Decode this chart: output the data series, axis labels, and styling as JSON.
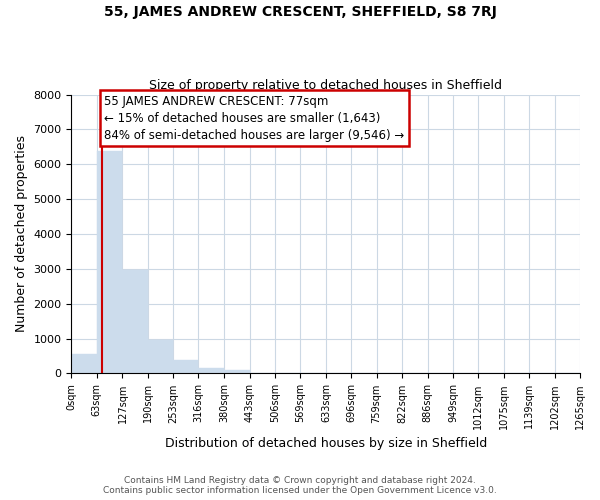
{
  "title": "55, JAMES ANDREW CRESCENT, SHEFFIELD, S8 7RJ",
  "subtitle": "Size of property relative to detached houses in Sheffield",
  "xlabel": "Distribution of detached houses by size in Sheffield",
  "ylabel": "Number of detached properties",
  "bar_edges": [
    0,
    63,
    127,
    190,
    253,
    316,
    380,
    443,
    506,
    569,
    633,
    696,
    759,
    822,
    886,
    949,
    1012,
    1075,
    1139,
    1202,
    1265
  ],
  "bar_heights": [
    560,
    6380,
    2960,
    960,
    390,
    170,
    90,
    0,
    0,
    0,
    0,
    0,
    0,
    0,
    0,
    0,
    0,
    0,
    0,
    0
  ],
  "bar_color": "#ccdcec",
  "property_line_x": 77,
  "property_line_color": "#cc0000",
  "annotation_text": "55 JAMES ANDREW CRESCENT: 77sqm\n← 15% of detached houses are smaller (1,643)\n84% of semi-detached houses are larger (9,546) →",
  "annotation_box_facecolor": "#ffffff",
  "annotation_box_edgecolor": "#cc0000",
  "ylim": [
    0,
    8000
  ],
  "xlim": [
    0,
    1265
  ],
  "tick_labels": [
    "0sqm",
    "63sqm",
    "127sqm",
    "190sqm",
    "253sqm",
    "316sqm",
    "380sqm",
    "443sqm",
    "506sqm",
    "569sqm",
    "633sqm",
    "696sqm",
    "759sqm",
    "822sqm",
    "886sqm",
    "949sqm",
    "1012sqm",
    "1075sqm",
    "1139sqm",
    "1202sqm",
    "1265sqm"
  ],
  "tick_positions": [
    0,
    63,
    127,
    190,
    253,
    316,
    380,
    443,
    506,
    569,
    633,
    696,
    759,
    822,
    886,
    949,
    1012,
    1075,
    1139,
    1202,
    1265
  ],
  "footer_line1": "Contains HM Land Registry data © Crown copyright and database right 2024.",
  "footer_line2": "Contains public sector information licensed under the Open Government Licence v3.0.",
  "background_color": "#ffffff",
  "grid_color": "#ccd8e4",
  "title_fontsize": 10,
  "subtitle_fontsize": 9,
  "ylabel_fontsize": 9,
  "xlabel_fontsize": 9,
  "tick_fontsize": 7,
  "annotation_fontsize": 8.5,
  "footer_fontsize": 6.5
}
